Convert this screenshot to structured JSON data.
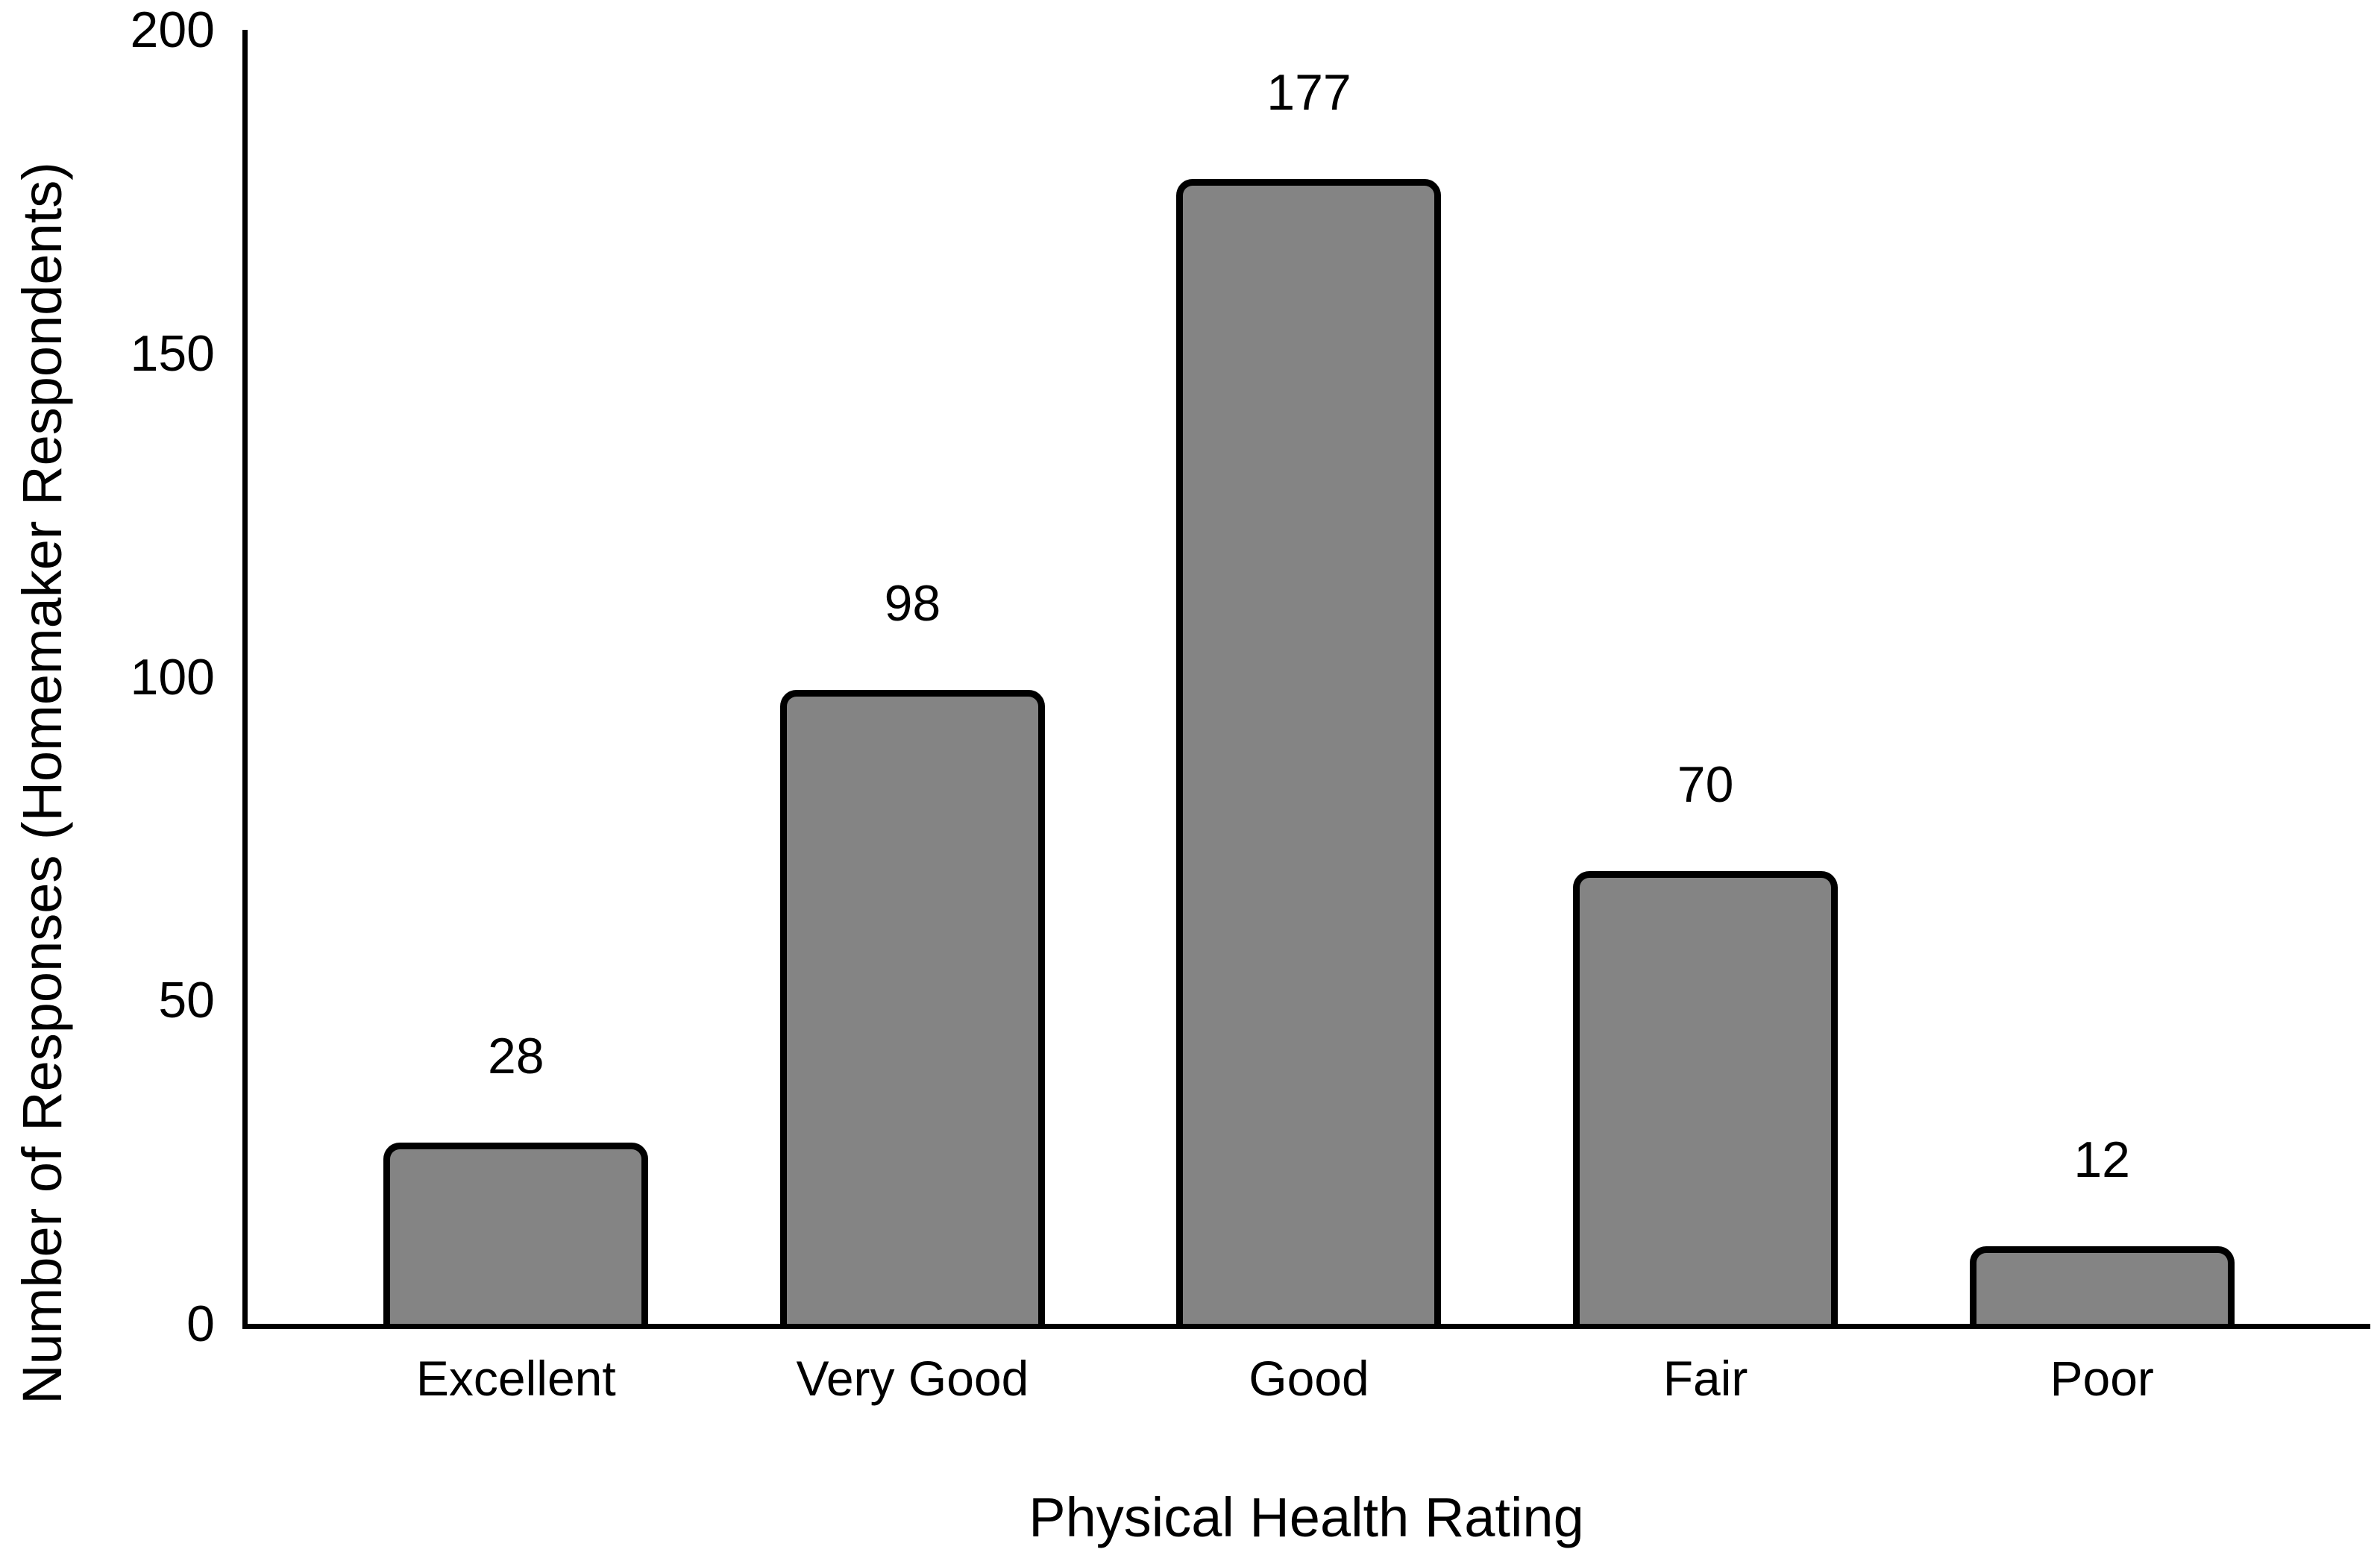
{
  "figure": {
    "colors": {
      "background": "#ffffff",
      "bar-fill": "#848484",
      "bar-border": "#000000",
      "axis": "#000000",
      "text": "#000000"
    }
  },
  "chart_data": {
    "type": "bar",
    "title": "",
    "xlabel": "Physical Health Rating",
    "ylabel": "Number of Responses (Homemaker Respondents)",
    "categories": [
      "Excellent",
      "Very Good",
      "Good",
      "Fair",
      "Poor"
    ],
    "values": [
      28,
      98,
      177,
      70,
      12
    ],
    "data_labels": [
      "28",
      "98",
      "177",
      "70",
      "12"
    ],
    "ylim": [
      0,
      200
    ],
    "yticks": [
      0,
      50,
      100,
      150,
      200
    ],
    "grid": false,
    "legend": "none",
    "bar_style": "gray fill, black outline, rounded top corners"
  }
}
